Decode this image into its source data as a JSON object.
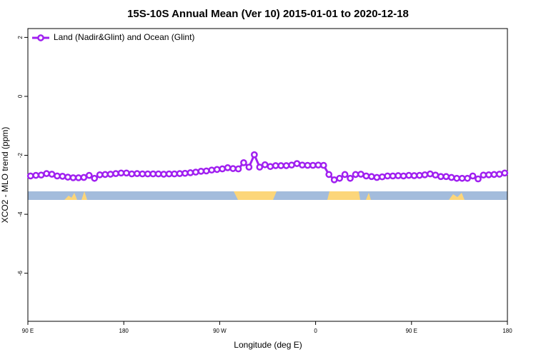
{
  "chart_data": {
    "type": "line",
    "title": "15S-10S Annual Mean (Ver 10)   2015-01-01 to 2020-12-18",
    "x_label": "Longitude (deg E)",
    "y_label": "XCO2 - MLO trend (ppm)",
    "x": [
      92.5,
      97.5,
      102.5,
      107.5,
      112.5,
      117.5,
      122.5,
      127.5,
      132.5,
      137.5,
      142.5,
      147.5,
      152.5,
      157.5,
      162.5,
      167.5,
      172.5,
      177.5,
      182.5,
      187.5,
      192.5,
      197.5,
      202.5,
      207.5,
      212.5,
      217.5,
      222.5,
      227.5,
      232.5,
      237.5,
      242.5,
      247.5,
      252.5,
      257.5,
      262.5,
      267.5,
      272.5,
      277.5,
      282.5,
      287.5,
      292.5,
      297.5,
      302.5,
      307.5,
      312.5,
      317.5,
      322.5,
      327.5,
      332.5,
      337.5,
      342.5,
      347.5,
      352.5,
      357.5,
      362.5,
      367.5,
      372.5,
      377.5,
      382.5,
      387.5,
      392.5,
      397.5,
      402.5,
      407.5,
      412.5,
      417.5,
      422.5,
      427.5,
      432.5,
      437.5,
      442.5,
      447.5,
      452.5,
      457.5,
      462.5,
      467.5,
      472.5,
      477.5,
      482.5,
      487.5,
      492.5,
      497.5,
      502.5,
      507.5,
      512.5,
      517.5,
      522.5,
      527.5,
      532.5,
      537.5
    ],
    "series": [
      {
        "name": "Land (Nadir&Glint) and Ocean (Glint)",
        "color": "#a020f0",
        "values": [
          -2.7,
          -2.68,
          -2.67,
          -2.62,
          -2.64,
          -2.7,
          -2.71,
          -2.74,
          -2.76,
          -2.76,
          -2.75,
          -2.68,
          -2.78,
          -2.66,
          -2.65,
          -2.64,
          -2.62,
          -2.6,
          -2.6,
          -2.63,
          -2.62,
          -2.63,
          -2.63,
          -2.63,
          -2.63,
          -2.64,
          -2.63,
          -2.63,
          -2.62,
          -2.61,
          -2.59,
          -2.57,
          -2.54,
          -2.53,
          -2.5,
          -2.48,
          -2.46,
          -2.42,
          -2.45,
          -2.46,
          -2.25,
          -2.4,
          -1.98,
          -2.4,
          -2.32,
          -2.38,
          -2.35,
          -2.35,
          -2.35,
          -2.33,
          -2.28,
          -2.33,
          -2.34,
          -2.34,
          -2.33,
          -2.34,
          -2.65,
          -2.83,
          -2.78,
          -2.65,
          -2.78,
          -2.65,
          -2.64,
          -2.7,
          -2.72,
          -2.75,
          -2.73,
          -2.7,
          -2.7,
          -2.69,
          -2.7,
          -2.68,
          -2.69,
          -2.68,
          -2.66,
          -2.63,
          -2.67,
          -2.72,
          -2.72,
          -2.75,
          -2.78,
          -2.78,
          -2.78,
          -2.7,
          -2.8,
          -2.67,
          -2.66,
          -2.65,
          -2.64,
          -2.6
        ]
      }
    ],
    "xlim": [
      90,
      540
    ],
    "xticks": [
      {
        "value": 90,
        "label": "90 E"
      },
      {
        "value": 180,
        "label": "180"
      },
      {
        "value": 270,
        "label": "90 W"
      },
      {
        "value": 360,
        "label": "0"
      },
      {
        "value": 450,
        "label": "90 E"
      },
      {
        "value": 540,
        "label": "180"
      }
    ],
    "ylim": [
      -7.63,
      2.3
    ],
    "yticks": [
      -6,
      -4,
      -2,
      0,
      2
    ],
    "legend": "upper left"
  }
}
